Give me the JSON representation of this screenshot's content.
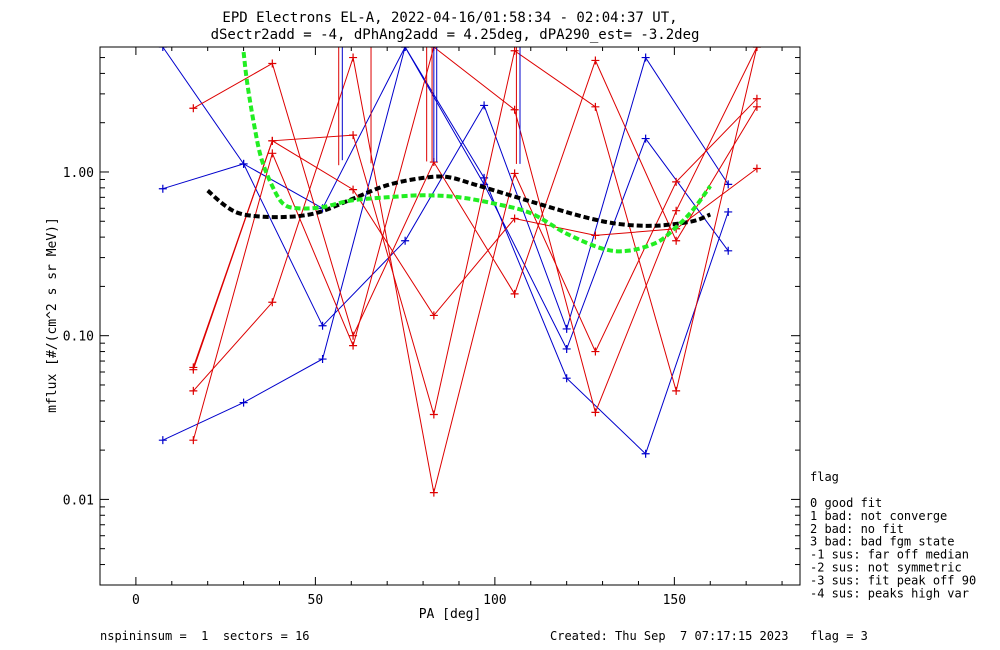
{
  "chart_data": {
    "type": "line",
    "title": "EPD Electrons EL-A, 2022-04-16/01:58:34 - 02:04:37 UT,",
    "subtitle": "dSectr2add = -4, dPhAng2add = 4.25deg, dPA290_est=  -3.2deg",
    "xlabel": "PA [deg]",
    "ylabel": "mflux [#/(cm^2 s sr MeV)]",
    "xlim": [
      -10,
      185
    ],
    "ylim": [
      0.003,
      5.8
    ],
    "yscale": "log",
    "x_ticks": [
      {
        "value": 0,
        "label": "0"
      },
      {
        "value": 50,
        "label": "50"
      },
      {
        "value": 100,
        "label": "100"
      },
      {
        "value": 150,
        "label": "150"
      }
    ],
    "y_ticks": [
      {
        "value": 0.01,
        "label": "0.01"
      },
      {
        "value": 0.1,
        "label": "0.10"
      },
      {
        "value": 1.0,
        "label": "1.00"
      }
    ],
    "colors": {
      "blue": "#0000cc",
      "red": "#dd0000",
      "black": "#000000",
      "green": "#22ee22"
    },
    "series": [
      {
        "color": "#0000cc",
        "points": [
          [
            7.5,
            0.79
          ],
          [
            30,
            1.12
          ],
          [
            52,
            0.115
          ],
          [
            75,
            0.38
          ],
          [
            97,
            2.55
          ],
          [
            120,
            0.11
          ],
          [
            142,
            5.0
          ],
          [
            165,
            0.84
          ]
        ]
      },
      {
        "color": "#0000cc",
        "points": [
          [
            7.5,
            0.023
          ],
          [
            30,
            0.039
          ],
          [
            52,
            0.072
          ],
          [
            75,
            5.8
          ],
          [
            97,
            0.92
          ],
          [
            120,
            0.055
          ],
          [
            142,
            0.019
          ],
          [
            165,
            0.57
          ]
        ]
      },
      {
        "color": "#0000cc",
        "points": [
          [
            7.5,
            5.8
          ],
          [
            30,
            1.12
          ],
          [
            52,
            0.6
          ],
          [
            75,
            5.8
          ],
          [
            97,
            0.84
          ],
          [
            120,
            0.083
          ],
          [
            142,
            1.6
          ],
          [
            165,
            0.33
          ]
        ]
      },
      {
        "color": "#dd0000",
        "points": [
          [
            16,
            0.062
          ],
          [
            38,
            1.55
          ],
          [
            60.5,
            1.68
          ],
          [
            83,
            0.033
          ],
          [
            105.5,
            5.5
          ],
          [
            128,
            2.5
          ],
          [
            150.5,
            0.046
          ],
          [
            173,
            5.8
          ]
        ]
      },
      {
        "color": "#dd0000",
        "points": [
          [
            16,
            2.45
          ],
          [
            38,
            4.6
          ],
          [
            60.5,
            0.1
          ],
          [
            83,
            1.15
          ],
          [
            105.5,
            0.18
          ],
          [
            128,
            4.8
          ],
          [
            150.5,
            0.38
          ],
          [
            173,
            2.5
          ]
        ]
      },
      {
        "color": "#dd0000",
        "points": [
          [
            16,
            0.023
          ],
          [
            38,
            1.3
          ],
          [
            60.5,
            0.087
          ],
          [
            83,
            5.8
          ],
          [
            105.5,
            2.4
          ],
          [
            128,
            0.034
          ],
          [
            150.5,
            0.58
          ],
          [
            173,
            5.8
          ]
        ]
      },
      {
        "color": "#dd0000",
        "points": [
          [
            16,
            0.046
          ],
          [
            38,
            0.16
          ],
          [
            60.5,
            5.0
          ],
          [
            83,
            0.011
          ],
          [
            105.5,
            0.98
          ],
          [
            128,
            0.08
          ],
          [
            150.5,
            0.87
          ],
          [
            173,
            2.8
          ]
        ]
      },
      {
        "color": "#dd0000",
        "points": [
          [
            16,
            0.064
          ],
          [
            38,
            1.55
          ],
          [
            60.5,
            0.78
          ],
          [
            83,
            0.133
          ],
          [
            105.5,
            0.52
          ],
          [
            128,
            0.41
          ],
          [
            150.5,
            0.45
          ],
          [
            173,
            1.05
          ]
        ]
      }
    ],
    "vertical_lines": [
      {
        "color": "#dd0000",
        "x": 56.5,
        "y_top": 5.8,
        "y_bottom": 1.1
      },
      {
        "color": "#0000cc",
        "x": 57.5,
        "y_top": 5.8,
        "y_bottom": 1.18
      },
      {
        "color": "#dd0000",
        "x": 65.5,
        "y_top": 5.8,
        "y_bottom": 1.13
      },
      {
        "color": "#dd0000",
        "x": 81.0,
        "y_top": 5.8,
        "y_bottom": 1.16
      },
      {
        "color": "#dd0000",
        "x": 82.5,
        "y_top": 5.8,
        "y_bottom": 1.16
      },
      {
        "color": "#0000cc",
        "x": 83.0,
        "y_top": 5.8,
        "y_bottom": 1.15
      },
      {
        "color": "#0000cc",
        "x": 83.8,
        "y_top": 5.8,
        "y_bottom": 1.15
      },
      {
        "color": "#dd0000",
        "x": 106.0,
        "y_top": 5.8,
        "y_bottom": 1.12
      },
      {
        "color": "#0000cc",
        "x": 107.0,
        "y_top": 5.8,
        "y_bottom": 1.12
      }
    ],
    "fits": [
      {
        "color": "#000000",
        "points": [
          [
            20,
            0.77
          ],
          [
            25,
            0.62
          ],
          [
            30,
            0.55
          ],
          [
            40,
            0.53
          ],
          [
            50,
            0.56
          ],
          [
            60,
            0.68
          ],
          [
            70,
            0.83
          ],
          [
            80,
            0.92
          ],
          [
            87,
            0.93
          ],
          [
            95,
            0.83
          ],
          [
            110,
            0.66
          ],
          [
            125,
            0.53
          ],
          [
            135,
            0.48
          ],
          [
            145,
            0.47
          ],
          [
            155,
            0.5
          ],
          [
            160,
            0.55
          ]
        ]
      },
      {
        "color": "#22ee22",
        "points": [
          [
            30,
            5.4
          ],
          [
            31,
            3.5
          ],
          [
            33,
            1.9
          ],
          [
            35,
            1.2
          ],
          [
            38,
            0.82
          ],
          [
            41,
            0.64
          ],
          [
            45,
            0.6
          ],
          [
            52,
            0.61
          ],
          [
            60,
            0.67
          ],
          [
            70,
            0.7
          ],
          [
            80,
            0.72
          ],
          [
            90,
            0.7
          ],
          [
            100,
            0.64
          ],
          [
            110,
            0.56
          ],
          [
            120,
            0.42
          ],
          [
            130,
            0.34
          ],
          [
            137,
            0.33
          ],
          [
            145,
            0.37
          ],
          [
            150,
            0.45
          ],
          [
            155,
            0.58
          ],
          [
            160,
            0.82
          ]
        ]
      }
    ]
  },
  "legend": {
    "title": "flag",
    "items": [
      " 0 good fit",
      " 1 bad: not converge",
      " 2 bad: no fit",
      " 3 bad: bad fgm state",
      "-1 sus: far off median",
      "-2 sus: not symmetric",
      "-3 sus: fit peak off 90",
      "-4 sus: peaks high var"
    ]
  },
  "footer": {
    "left": "nspininsum =  1  sectors = 16",
    "right": "Created: Thu Sep  7 07:17:15 2023   flag = 3"
  }
}
